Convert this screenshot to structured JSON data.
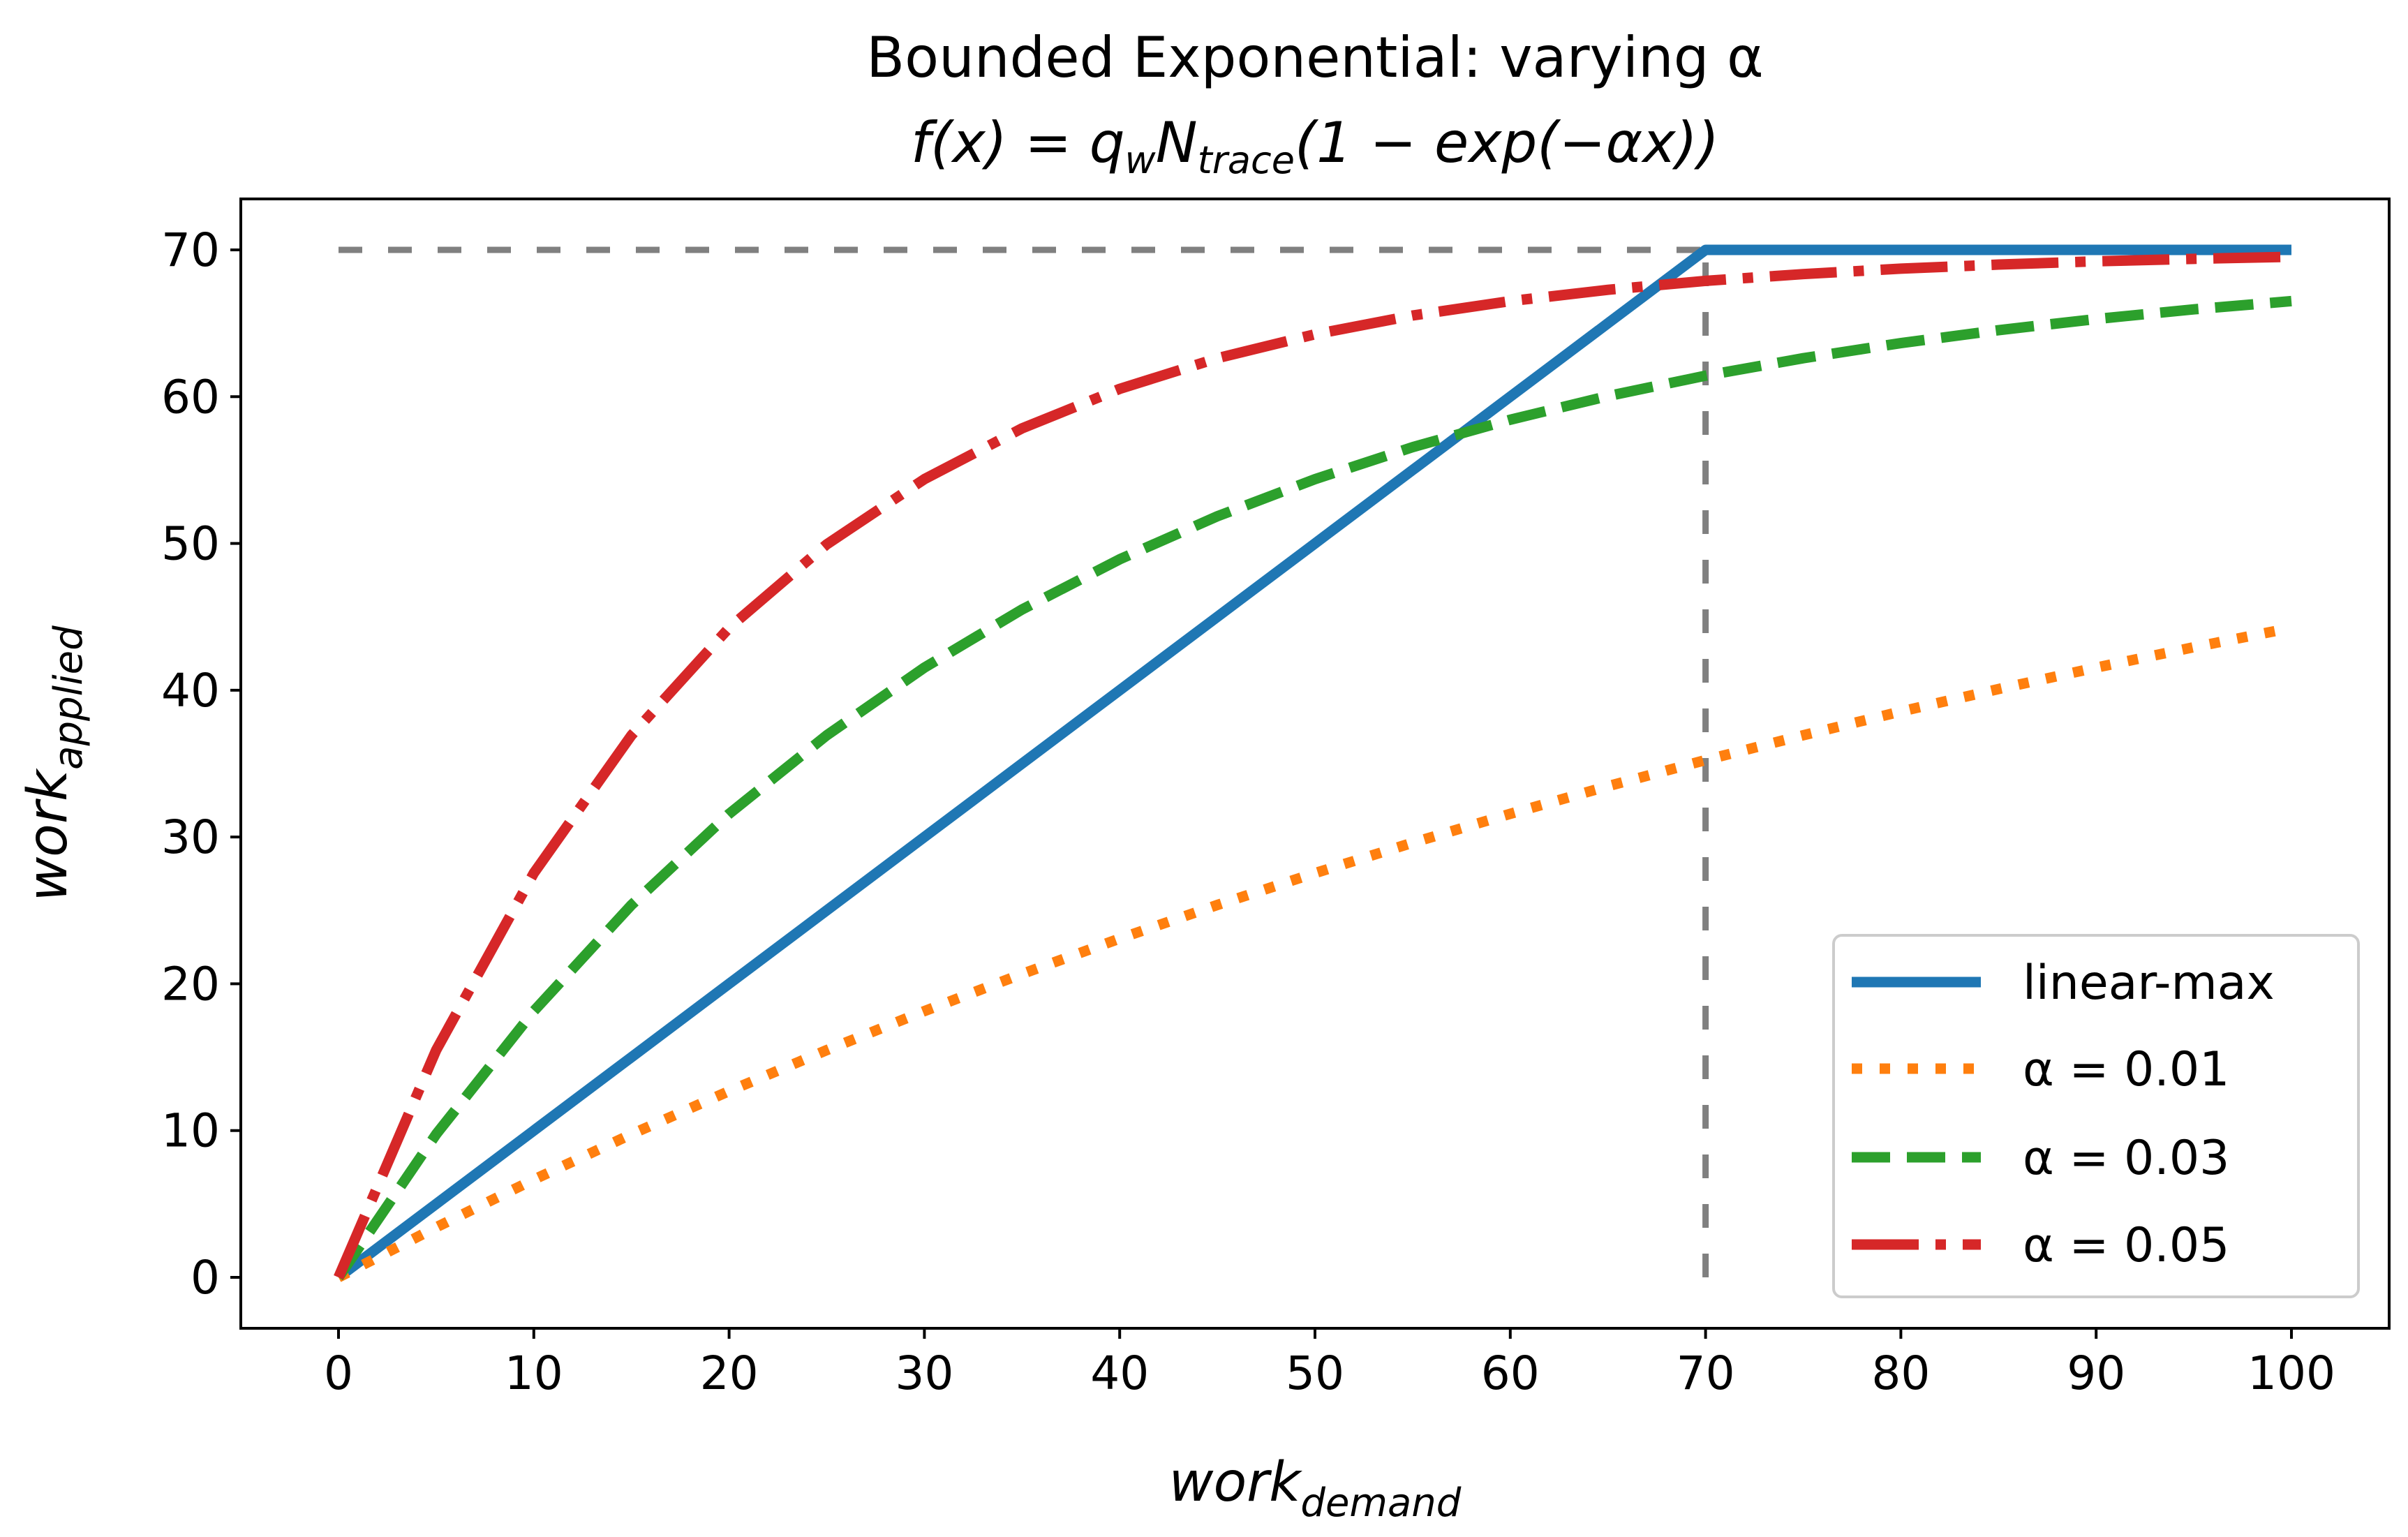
{
  "chart_data": {
    "type": "line",
    "title": "Bounded Exponential: varying α",
    "subtitle": {
      "prefix": "f(x) = q",
      "sub1": "w",
      "mid": "N",
      "sub2": "trace",
      "suffix": "(1 − exp(−αx))"
    },
    "xlabel": {
      "base": "work",
      "sub": "demand"
    },
    "ylabel": {
      "base": "work",
      "sub": "applied"
    },
    "xlim": [
      -5,
      104
    ],
    "ylim": [
      -3.5,
      73.5
    ],
    "xticks": [
      "0",
      "10",
      "20",
      "30",
      "40",
      "50",
      "60",
      "70",
      "80",
      "90",
      "100"
    ],
    "yticks": [
      "0",
      "10",
      "20",
      "30",
      "40",
      "50",
      "60",
      "70"
    ],
    "grid": false,
    "legend_position": "lower-right",
    "reference_lines": [
      {
        "kind": "horizontal",
        "y": 70,
        "x_range": [
          0,
          70
        ],
        "color": "#808080",
        "style": "dashed"
      },
      {
        "kind": "vertical",
        "x": 70,
        "y_range": [
          0,
          70
        ],
        "color": "#808080",
        "style": "dashed"
      }
    ],
    "x": [
      0,
      5,
      10,
      15,
      20,
      25,
      30,
      35,
      40,
      45,
      50,
      55,
      60,
      65,
      70,
      75,
      80,
      85,
      90,
      95,
      100
    ],
    "series": [
      {
        "name": "linear-max",
        "color": "#1f77b4",
        "style": "solid",
        "values": [
          0,
          5,
          10,
          15,
          20,
          25,
          30,
          35,
          40,
          45,
          50,
          55,
          60,
          65,
          70,
          70,
          70,
          70,
          70,
          70,
          70
        ]
      },
      {
        "name": "α = 0.01",
        "color": "#ff7f0e",
        "style": "dotted",
        "values": [
          0,
          3.41,
          6.66,
          9.75,
          12.69,
          15.48,
          18.14,
          20.67,
          23.08,
          25.37,
          27.54,
          29.61,
          31.58,
          33.46,
          35.24,
          36.93,
          38.55,
          40.08,
          41.54,
          42.93,
          44.25
        ]
      },
      {
        "name": "α = 0.03",
        "color": "#2ca02c",
        "style": "dashed",
        "values": [
          0,
          9.75,
          18.14,
          25.37,
          31.58,
          36.93,
          41.54,
          45.5,
          48.92,
          51.85,
          54.38,
          56.56,
          58.43,
          60.04,
          61.43,
          62.62,
          63.65,
          64.53,
          65.29,
          65.95,
          66.51
        ]
      },
      {
        "name": "α = 0.05",
        "color": "#d62728",
        "style": "dashdot",
        "values": [
          0,
          15.48,
          27.54,
          36.93,
          44.25,
          49.94,
          54.38,
          57.84,
          60.53,
          62.62,
          64.25,
          65.53,
          66.51,
          67.28,
          67.89,
          68.35,
          68.72,
          69.0,
          69.22,
          69.39,
          69.53
        ]
      }
    ]
  }
}
